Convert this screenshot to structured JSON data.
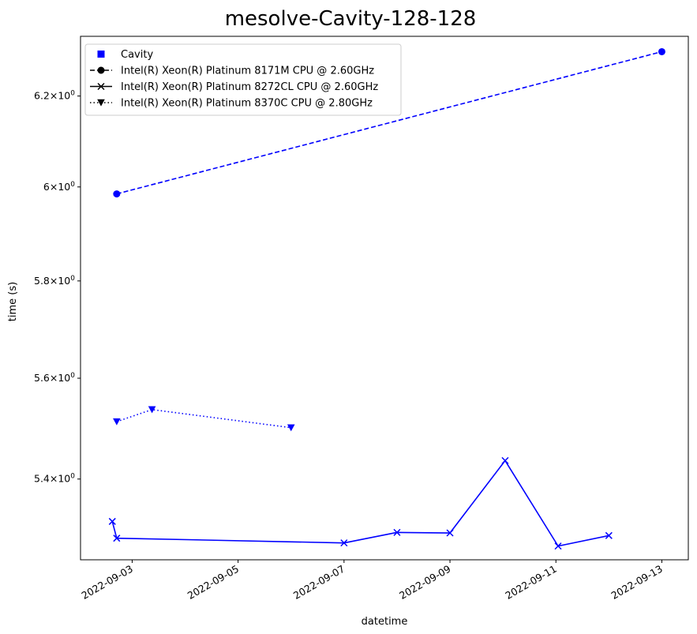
{
  "chart_data": {
    "type": "line",
    "title": "mesolve-Cavity-128-128",
    "xlabel": "datetime",
    "ylabel": "time (s)",
    "y_scale": "log",
    "xlim": [
      "2022-09-02T00:36",
      "2022-09-13T12:00"
    ],
    "ylim": [
      5.245,
      6.335
    ],
    "x_ticks": [
      "2022-09-03",
      "2022-09-05",
      "2022-09-07",
      "2022-09-09",
      "2022-09-11",
      "2022-09-13"
    ],
    "y_ticks": [
      {
        "value": 5.4,
        "mantissa": "5.4",
        "base": "10",
        "exp": "0"
      },
      {
        "value": 5.6,
        "mantissa": "5.6",
        "base": "10",
        "exp": "0"
      },
      {
        "value": 5.8,
        "mantissa": "5.8",
        "base": "10",
        "exp": "0"
      },
      {
        "value": 6.0,
        "mantissa": "6",
        "base": "10",
        "exp": "0"
      },
      {
        "value": 6.2,
        "mantissa": "6.2",
        "base": "10",
        "exp": "0"
      }
    ],
    "legend": {
      "placement": "upper-left",
      "entries": [
        {
          "label": "Cavity",
          "marker": "square",
          "linestyle": "none"
        },
        {
          "label": "Intel(R) Xeon(R) Platinum 8171M CPU @ 2.60GHz",
          "marker": "circle",
          "linestyle": "dashed"
        },
        {
          "label": "Intel(R) Xeon(R) Platinum 8272CL CPU @ 2.60GHz",
          "marker": "x",
          "linestyle": "solid"
        },
        {
          "label": "Intel(R) Xeon(R) Platinum 8370C CPU @ 2.80GHz",
          "marker": "triangle-down",
          "linestyle": "dotted"
        }
      ]
    },
    "series": [
      {
        "name": "Intel(R) Xeon(R) Platinum 8171M CPU @ 2.60GHz",
        "color": "#0000ff",
        "linestyle": "dashed",
        "marker": "circle",
        "points": [
          {
            "x": "2022-09-02T17:00",
            "y": 5.985
          },
          {
            "x": "2022-09-13T00:00",
            "y": 6.3
          }
        ]
      },
      {
        "name": "Intel(R) Xeon(R) Platinum 8272CL CPU @ 2.60GHz",
        "color": "#0000ff",
        "linestyle": "solid",
        "marker": "x",
        "points": [
          {
            "x": "2022-09-02T15:00",
            "y": 5.318
          },
          {
            "x": "2022-09-02T17:00",
            "y": 5.286
          },
          {
            "x": "2022-09-07T00:00",
            "y": 5.277
          },
          {
            "x": "2022-09-08T00:00",
            "y": 5.297
          },
          {
            "x": "2022-09-09T00:00",
            "y": 5.296
          },
          {
            "x": "2022-09-10T01:00",
            "y": 5.436
          },
          {
            "x": "2022-09-11T01:00",
            "y": 5.271
          },
          {
            "x": "2022-09-12T00:00",
            "y": 5.291
          }
        ]
      },
      {
        "name": "Intel(R) Xeon(R) Platinum 8370C CPU @ 2.80GHz",
        "color": "#0000ff",
        "linestyle": "dotted",
        "marker": "triangle-down",
        "points": [
          {
            "x": "2022-09-02T17:00",
            "y": 5.513
          },
          {
            "x": "2022-09-03T09:00",
            "y": 5.537
          },
          {
            "x": "2022-09-06T00:00",
            "y": 5.501
          }
        ]
      }
    ],
    "colors": {
      "series": "#0000ff",
      "axes": "#000000"
    }
  }
}
